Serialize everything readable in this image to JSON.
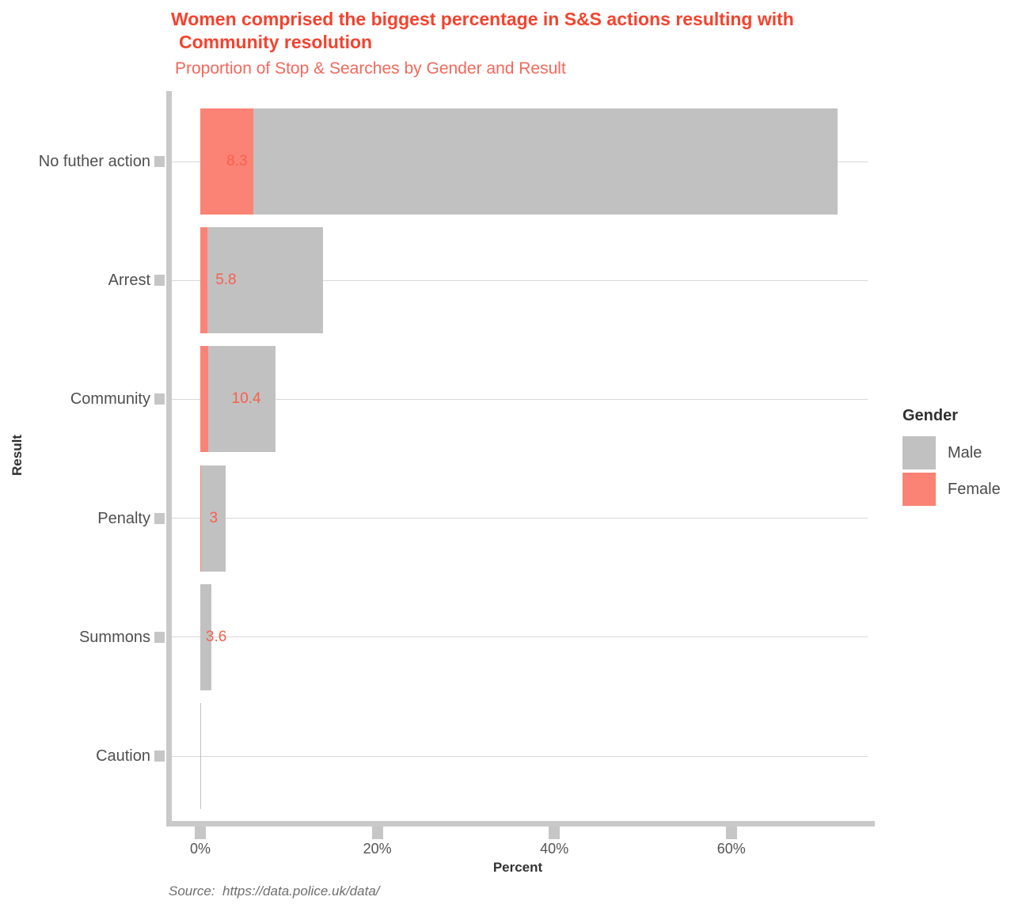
{
  "header": {
    "title_line1": "Women comprised the biggest percentage in S&S actions resulting with",
    "title_line2": "Community resolution",
    "subtitle": "Proportion of Stop & Searches by Gender and Result"
  },
  "axes": {
    "x": {
      "title": "Percent",
      "tick_labels": [
        "0%",
        "20%",
        "40%",
        "60%"
      ],
      "tick_values": [
        0,
        20,
        40,
        60
      ]
    },
    "y": {
      "title": "Result"
    }
  },
  "legend": {
    "title": "Gender",
    "items": [
      {
        "label": "Male",
        "color": "#C1C1C1"
      },
      {
        "label": "Female",
        "color": "#FB8375"
      }
    ]
  },
  "source": "Source:  https://data.police.uk/data/",
  "colors": {
    "title": "#F4432E",
    "subtitle": "#F3685A",
    "male_bar": "#C1C1C1",
    "female_bar": "#FB8375",
    "value_label": "#F95F4B",
    "axis_line": "#C9C9C9",
    "gridline": "#D8D8D8",
    "category_text": "#4F4F4F"
  },
  "chart_data": {
    "type": "bar",
    "orientation": "horizontal",
    "stacked": true,
    "title": "Proportion of Stop & Searches by Gender and Result",
    "xlabel": "Percent",
    "ylabel": "Result",
    "xlim": [
      0,
      75
    ],
    "grid": "horizontal-per-category",
    "legend_position": "right",
    "categories": [
      "No futher action",
      "Arrest",
      "Community",
      "Penalty",
      "Summons",
      "Caution"
    ],
    "series": [
      {
        "name": "Female",
        "values": [
          6.0,
          0.8,
          0.9,
          0.1,
          0.0,
          0.0
        ]
      },
      {
        "name": "Male",
        "values": [
          66.0,
          13.1,
          7.6,
          2.8,
          1.25,
          0.08
        ]
      }
    ],
    "category_totals_pct": [
      72.0,
      13.9,
      8.5,
      2.9,
      1.25,
      0.08
    ],
    "bar_labels": [
      "8.3",
      "5.8",
      "10.4",
      "3",
      "3.6",
      ""
    ],
    "bar_label_center_pct": [
      4.15,
      2.9,
      5.2,
      1.5,
      1.8,
      null
    ]
  }
}
